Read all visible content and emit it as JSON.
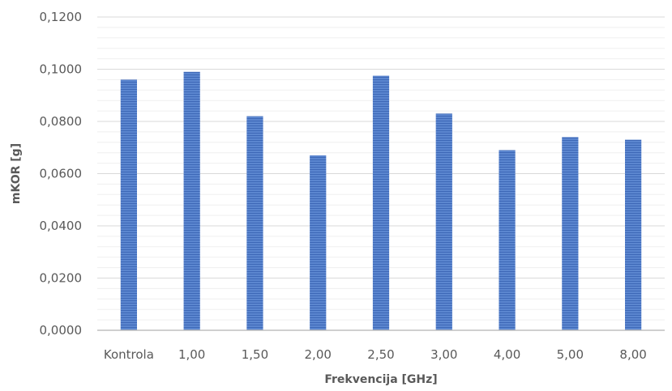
{
  "chart_data": {
    "type": "bar",
    "title": "",
    "xlabel": "Frekvencija [GHz]",
    "ylabel": "mKOR [g]",
    "categories": [
      "Kontrola",
      "1,00",
      "1,50",
      "2,00",
      "2,50",
      "3,00",
      "4,00",
      "5,00",
      "8,00"
    ],
    "values": [
      0.096,
      0.099,
      0.082,
      0.067,
      0.0975,
      0.083,
      0.069,
      0.074,
      0.073
    ],
    "ylim": [
      0,
      0.12
    ],
    "yticks": [
      0,
      0.02,
      0.04,
      0.06,
      0.08,
      0.1,
      0.12
    ],
    "ytick_labels": [
      "0,0000",
      "0,0200",
      "0,0400",
      "0,0600",
      "0,0800",
      "0,1000",
      "0,1200"
    ],
    "grid": true,
    "legend": "none",
    "bar_color": "#4472c4"
  }
}
